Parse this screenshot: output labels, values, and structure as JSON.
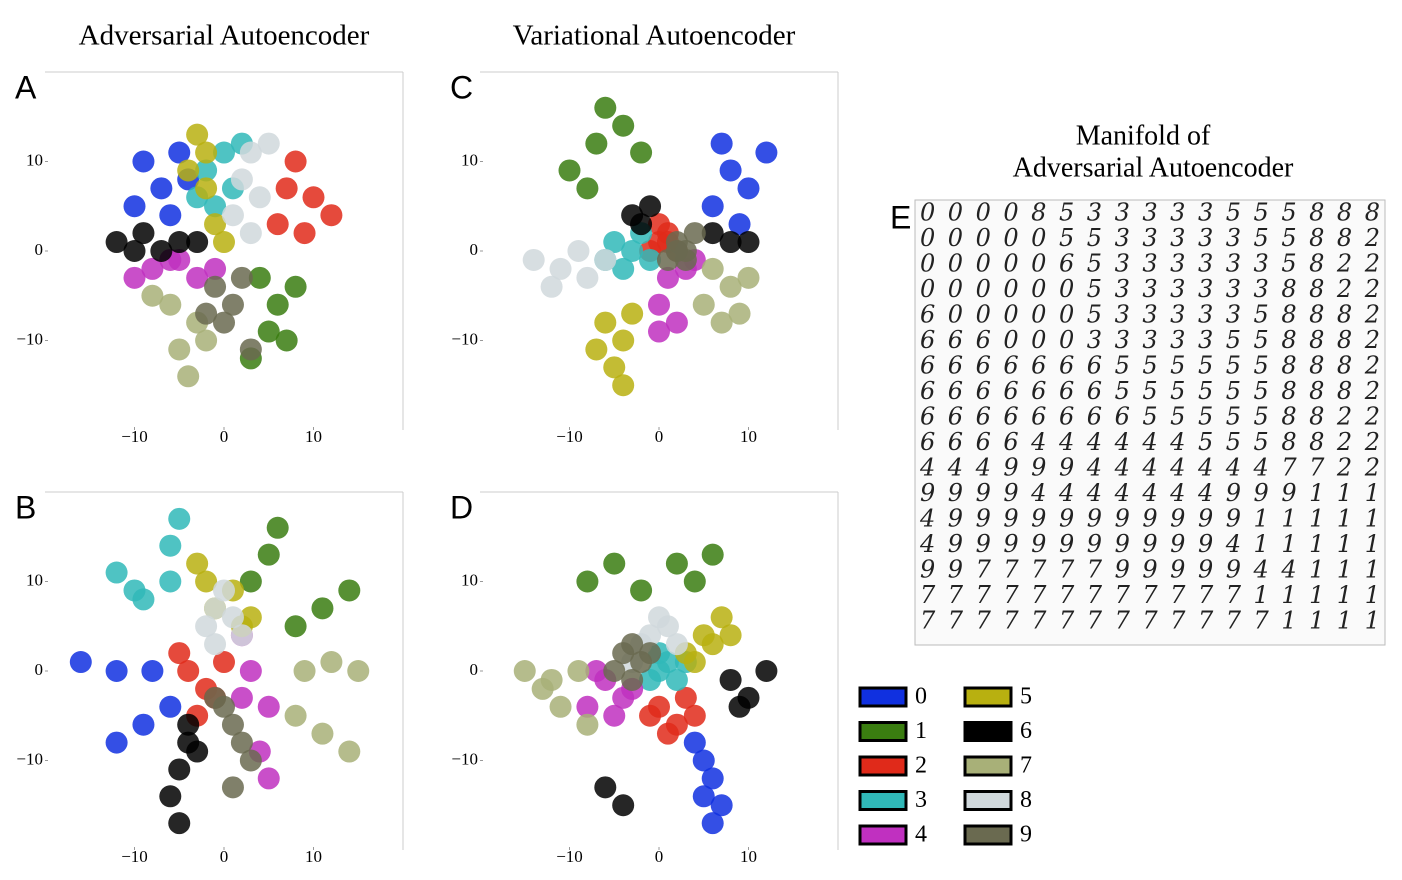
{
  "column_titles": [
    "Adversarial Autoencoder",
    "Variational Autoencoder"
  ],
  "legend": [
    {
      "name": "0",
      "color": "#1030e0"
    },
    {
      "name": "1",
      "color": "#3a7d10"
    },
    {
      "name": "2",
      "color": "#e02a1a"
    },
    {
      "name": "3",
      "color": "#30b8b8"
    },
    {
      "name": "4",
      "color": "#c030c0"
    },
    {
      "name": "5",
      "color": "#b8b010"
    },
    {
      "name": "6",
      "color": "#000000"
    },
    {
      "name": "7",
      "color": "#a8b078"
    },
    {
      "name": "8",
      "color": "#d0d8dc"
    },
    {
      "name": "9",
      "color": "#6a6a50"
    }
  ],
  "manifold": {
    "label": "E",
    "title_lines": [
      "Manifold of",
      "Adversarial Autoencoder"
    ],
    "rows": [
      "00008533333555888",
      "00000553333355882",
      "00000653333335822",
      "00000053333338822",
      "60000053333358882",
      "66600033333558882",
      "66666665555558882",
      "66666665555558882",
      "66666666555558822",
      "66664444445558822",
      "44499944444447722",
      "99994444444999111",
      "49999999999911111",
      "49999999999411111",
      "99777779999944111",
      "77777777777711111",
      "77777777777771111"
    ]
  },
  "chart_data": [
    {
      "type": "scatter",
      "label": "A",
      "xlim": [
        -20,
        20
      ],
      "ylim": [
        -20,
        20
      ],
      "xticks": [
        {
          "value": -10,
          "label": "−10"
        },
        0,
        10
      ],
      "yticks": [
        10,
        0,
        {
          "value": -10,
          "label": "−10"
        }
      ],
      "series": [
        {
          "x": [
            -9,
            -7,
            -5,
            -10,
            -6,
            -4
          ],
          "y": [
            10,
            7,
            11,
            5,
            4,
            8
          ]
        },
        {
          "x": [
            4,
            6,
            8,
            5,
            7,
            3
          ],
          "y": [
            -3,
            -6,
            -4,
            -9,
            -10,
            -12
          ]
        },
        {
          "x": [
            7,
            10,
            9,
            12,
            6,
            8
          ],
          "y": [
            7,
            6,
            2,
            4,
            3,
            10
          ]
        },
        {
          "x": [
            -2,
            0,
            1,
            -1,
            -3,
            2
          ],
          "y": [
            9,
            11,
            7,
            5,
            6,
            12
          ]
        },
        {
          "x": [
            -8,
            -5,
            -3,
            -10,
            -1,
            -6
          ],
          "y": [
            -2,
            -1,
            -3,
            -3,
            -2,
            -1
          ]
        },
        {
          "x": [
            -3,
            -2,
            -4,
            -1,
            -2,
            0
          ],
          "y": [
            13,
            11,
            9,
            3,
            7,
            1
          ]
        },
        {
          "x": [
            -12,
            -9,
            -7,
            -5,
            -10,
            -3
          ],
          "y": [
            1,
            2,
            0,
            1,
            0,
            1
          ]
        },
        {
          "x": [
            -6,
            -3,
            -8,
            -2,
            -5,
            -4
          ],
          "y": [
            -6,
            -8,
            -5,
            -10,
            -11,
            -14
          ]
        },
        {
          "x": [
            3,
            2,
            4,
            1,
            5,
            3
          ],
          "y": [
            11,
            8,
            6,
            4,
            12,
            2
          ]
        },
        {
          "x": [
            -1,
            1,
            0,
            2,
            -2,
            3
          ],
          "y": [
            -4,
            -6,
            -8,
            -3,
            -7,
            -11
          ]
        }
      ]
    },
    {
      "type": "scatter",
      "label": "B",
      "xlim": [
        -20,
        20
      ],
      "ylim": [
        -20,
        20
      ],
      "xticks": [
        {
          "value": -10,
          "label": "−10"
        },
        0,
        10
      ],
      "yticks": [
        10,
        0,
        {
          "value": -10,
          "label": "−10"
        }
      ],
      "series": [
        {
          "x": [
            -16,
            -12,
            -8,
            -12,
            -9,
            -6
          ],
          "y": [
            1,
            0,
            0,
            -8,
            -6,
            -4
          ]
        },
        {
          "x": [
            3,
            5,
            6,
            8,
            11,
            14
          ],
          "y": [
            10,
            13,
            16,
            5,
            7,
            9
          ]
        },
        {
          "x": [
            -4,
            -2,
            0,
            -3,
            -1,
            -5
          ],
          "y": [
            0,
            -2,
            1,
            -5,
            -3,
            2
          ]
        },
        {
          "x": [
            -6,
            -6,
            -5,
            -12,
            -10,
            -9
          ],
          "y": [
            10,
            14,
            17,
            11,
            9,
            8
          ]
        },
        {
          "x": [
            2,
            3,
            5,
            4,
            5,
            2
          ],
          "y": [
            4,
            0,
            -4,
            -9,
            -12,
            -3
          ]
        },
        {
          "x": [
            -3,
            -2,
            1,
            3,
            2,
            -1
          ],
          "y": [
            12,
            10,
            9,
            6,
            5,
            7
          ]
        },
        {
          "x": [
            -4,
            -5,
            -6,
            -3,
            -5,
            -4
          ],
          "y": [
            -8,
            -11,
            -14,
            -9,
            -17,
            -6
          ]
        },
        {
          "x": [
            9,
            12,
            15,
            8,
            11,
            14
          ],
          "y": [
            0,
            1,
            0,
            -5,
            -7,
            -9
          ]
        },
        {
          "x": [
            -1,
            1,
            0,
            -2,
            2,
            -1
          ],
          "y": [
            7,
            6,
            9,
            5,
            4,
            3
          ]
        },
        {
          "x": [
            0,
            1,
            2,
            -1,
            3,
            1
          ],
          "y": [
            -4,
            -6,
            -8,
            -3,
            -10,
            -13
          ]
        }
      ]
    },
    {
      "type": "scatter",
      "label": "C",
      "xlim": [
        -20,
        20
      ],
      "ylim": [
        -20,
        20
      ],
      "xticks": [
        {
          "value": -10,
          "label": "−10"
        },
        0,
        10
      ],
      "yticks": [
        10,
        0,
        {
          "value": -10,
          "label": "−10"
        }
      ],
      "series": [
        {
          "x": [
            6,
            8,
            10,
            12,
            7,
            9
          ],
          "y": [
            5,
            9,
            7,
            11,
            12,
            3
          ]
        },
        {
          "x": [
            -10,
            -7,
            -4,
            -8,
            -2,
            -6
          ],
          "y": [
            9,
            12,
            14,
            7,
            11,
            16
          ]
        },
        {
          "x": [
            0,
            1,
            -1,
            2,
            0,
            1
          ],
          "y": [
            1,
            2,
            0,
            0,
            3,
            1
          ]
        },
        {
          "x": [
            -5,
            -3,
            -6,
            -2,
            -4,
            -1
          ],
          "y": [
            1,
            0,
            -1,
            2,
            -2,
            -1
          ]
        },
        {
          "x": [
            1,
            0,
            3,
            2,
            4,
            0
          ],
          "y": [
            -3,
            -6,
            -2,
            -8,
            -1,
            -9
          ]
        },
        {
          "x": [
            -6,
            -4,
            -5,
            -3,
            -7,
            -4
          ],
          "y": [
            -8,
            -10,
            -13,
            -7,
            -11,
            -15
          ]
        },
        {
          "x": [
            -3,
            -1,
            -2,
            8,
            10,
            6
          ],
          "y": [
            4,
            5,
            3,
            1,
            1,
            2
          ]
        },
        {
          "x": [
            6,
            8,
            10,
            5,
            9,
            7
          ],
          "y": [
            -2,
            -4,
            -3,
            -6,
            -7,
            -8
          ]
        },
        {
          "x": [
            -14,
            -11,
            -8,
            -12,
            -9,
            -6
          ],
          "y": [
            -1,
            -2,
            -3,
            -4,
            0,
            -1
          ]
        },
        {
          "x": [
            2,
            3,
            1,
            4,
            3,
            2
          ],
          "y": [
            1,
            0,
            -1,
            2,
            -1,
            0
          ]
        }
      ]
    },
    {
      "type": "scatter",
      "label": "D",
      "xlim": [
        -20,
        20
      ],
      "ylim": [
        -20,
        20
      ],
      "xticks": [
        {
          "value": -10,
          "label": "−10"
        },
        0,
        10
      ],
      "yticks": [
        10,
        0,
        {
          "value": -10,
          "label": "−10"
        }
      ],
      "series": [
        {
          "x": [
            4,
            5,
            6,
            7,
            5,
            6
          ],
          "y": [
            -8,
            -10,
            -12,
            -15,
            -14,
            -17
          ]
        },
        {
          "x": [
            -8,
            -5,
            -2,
            2,
            4,
            6
          ],
          "y": [
            10,
            12,
            9,
            12,
            10,
            13
          ]
        },
        {
          "x": [
            0,
            2,
            3,
            1,
            4,
            -1
          ],
          "y": [
            -4,
            -6,
            -3,
            -7,
            -5,
            -5
          ]
        },
        {
          "x": [
            0,
            1,
            -1,
            2,
            3,
            0
          ],
          "y": [
            0,
            1,
            -1,
            -1,
            1,
            2
          ]
        },
        {
          "x": [
            -6,
            -4,
            -7,
            -3,
            -5,
            -8
          ],
          "y": [
            -1,
            -3,
            0,
            -2,
            -5,
            -4
          ]
        },
        {
          "x": [
            3,
            5,
            6,
            4,
            7,
            8
          ],
          "y": [
            2,
            4,
            3,
            1,
            6,
            4
          ]
        },
        {
          "x": [
            8,
            10,
            12,
            9,
            -6,
            -4
          ],
          "y": [
            -1,
            -3,
            0,
            -4,
            -13,
            -15
          ]
        },
        {
          "x": [
            -15,
            -12,
            -9,
            -11,
            -13,
            -8
          ],
          "y": [
            0,
            -1,
            0,
            -4,
            -2,
            -6
          ]
        },
        {
          "x": [
            -1,
            1,
            -2,
            0,
            2,
            -3
          ],
          "y": [
            4,
            5,
            3,
            6,
            3,
            1
          ]
        },
        {
          "x": [
            -4,
            -3,
            -2,
            -5,
            -1,
            -3
          ],
          "y": [
            2,
            3,
            1,
            0,
            2,
            -1
          ]
        }
      ]
    }
  ]
}
